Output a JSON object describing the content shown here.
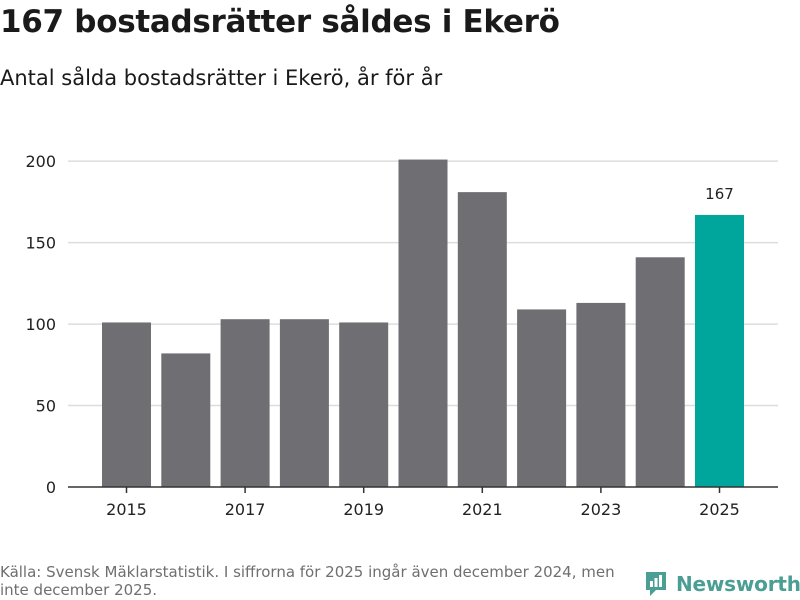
{
  "header": {
    "title": "167 bostadsrätter såldes i Ekerö",
    "subtitle": "Antal sålda bostadsrätter i Ekerö, år för år"
  },
  "chart_data": {
    "type": "bar",
    "categories": [
      "2015",
      "2016",
      "2017",
      "2018",
      "2019",
      "2020",
      "2021",
      "2022",
      "2023",
      "2024",
      "2025"
    ],
    "x_tick_labels": [
      "2015",
      "2017",
      "2019",
      "2021",
      "2023",
      "2025"
    ],
    "values": [
      101,
      82,
      103,
      103,
      101,
      201,
      181,
      109,
      113,
      141,
      167
    ],
    "y_ticks": [
      0,
      50,
      100,
      150,
      200
    ],
    "ylim": [
      0,
      213
    ],
    "grid": "horizontal",
    "highlight": {
      "category": "2025",
      "label": "167"
    },
    "colors": {
      "bar": "#6e6e73",
      "highlight": "#00a69c",
      "grid": "#dddddd",
      "axis": "#333333"
    }
  },
  "footer": {
    "source": "Källa: Svensk Mäklarstatistik. I siffrorna för 2025 ingår även december 2024, men inte december 2025."
  },
  "brand": {
    "name": "Newsworthy",
    "icon": "newsworthy-logo-icon",
    "color": "#4a9e93"
  }
}
